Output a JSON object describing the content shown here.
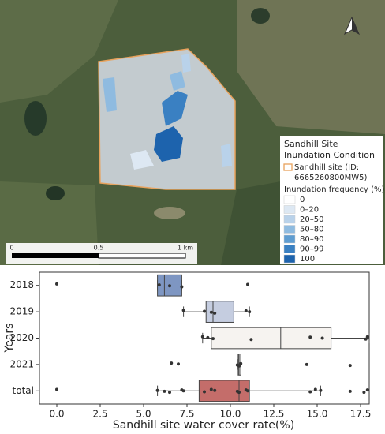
{
  "map": {
    "legend": {
      "title": [
        "Sandhill Site",
        "Inundation Condition"
      ],
      "site": [
        "Sandhill site (ID:",
        "6665260800MW5)"
      ],
      "site_color": "#e8a25c",
      "frequency_title": "Inundation frequency (%)",
      "classes": [
        {
          "label": "0",
          "color": "#ffffff"
        },
        {
          "label": "0–20",
          "color": "#dde8f3"
        },
        {
          "label": "20–50",
          "color": "#b9d2ea"
        },
        {
          "label": "50–80",
          "color": "#8fbbe0"
        },
        {
          "label": "80–90",
          "color": "#5f9dd1"
        },
        {
          "label": "90–99",
          "color": "#3a80c2"
        },
        {
          "label": "100",
          "color": "#1d63ad"
        }
      ]
    },
    "scale": [
      "0",
      "0.5",
      "1 km"
    ]
  },
  "chart_data": {
    "type": "boxplot",
    "orientation": "horizontal",
    "xlabel": "Sandhill site water cover rate(%)",
    "ylabel": "Years",
    "categories": [
      "2018",
      "2019",
      "2020",
      "2021",
      "total"
    ],
    "xlim": [
      -1.0,
      18.0
    ],
    "xticks": [
      {
        "value": 0,
        "label": "0.0"
      },
      2.5,
      {
        "value": 5,
        "label": "5.0"
      },
      7.5,
      {
        "value": 10,
        "label": "10.0"
      },
      12.5,
      {
        "value": 15,
        "label": "15.0"
      },
      17.5
    ],
    "boxes": [
      {
        "color": "#7e96c2",
        "whislo": 5.8,
        "q1": 5.8,
        "med": 6.2,
        "q3": 7.2,
        "whishi": 7.2,
        "points": [
          0.0,
          5.9,
          6.5,
          7.2,
          11.0
        ]
      },
      {
        "color": "#c5cde0",
        "whislo": 7.3,
        "q1": 8.6,
        "med": 9.0,
        "q3": 10.2,
        "whishi": 11.1,
        "points": [
          7.3,
          8.5,
          8.9,
          9.1,
          10.9,
          11.1
        ]
      },
      {
        "color": "#f6f3f0",
        "whislo": 8.4,
        "q1": 8.9,
        "med": 12.9,
        "q3": 15.8,
        "whishi": 18.0,
        "points": [
          8.4,
          8.7,
          9.0,
          11.2,
          14.6,
          15.3,
          17.8,
          17.9
        ]
      },
      {
        "color": "#d9d9d9",
        "whislo": 10.4,
        "q1": 10.45,
        "med": 10.5,
        "q3": 10.6,
        "whishi": 10.6,
        "points": [
          6.6,
          7.0,
          10.4,
          10.5,
          10.6,
          14.4,
          16.9
        ]
      },
      {
        "color": "#c46d6a",
        "whislo": 5.8,
        "q1": 8.2,
        "med": 10.5,
        "q3": 11.1,
        "whishi": 15.2,
        "points": [
          0.0,
          5.8,
          6.2,
          6.5,
          7.2,
          7.3,
          8.5,
          8.9,
          9.1,
          10.4,
          10.5,
          10.9,
          11.0,
          14.6,
          14.9,
          15.2,
          16.9,
          17.7,
          17.9
        ]
      }
    ]
  }
}
